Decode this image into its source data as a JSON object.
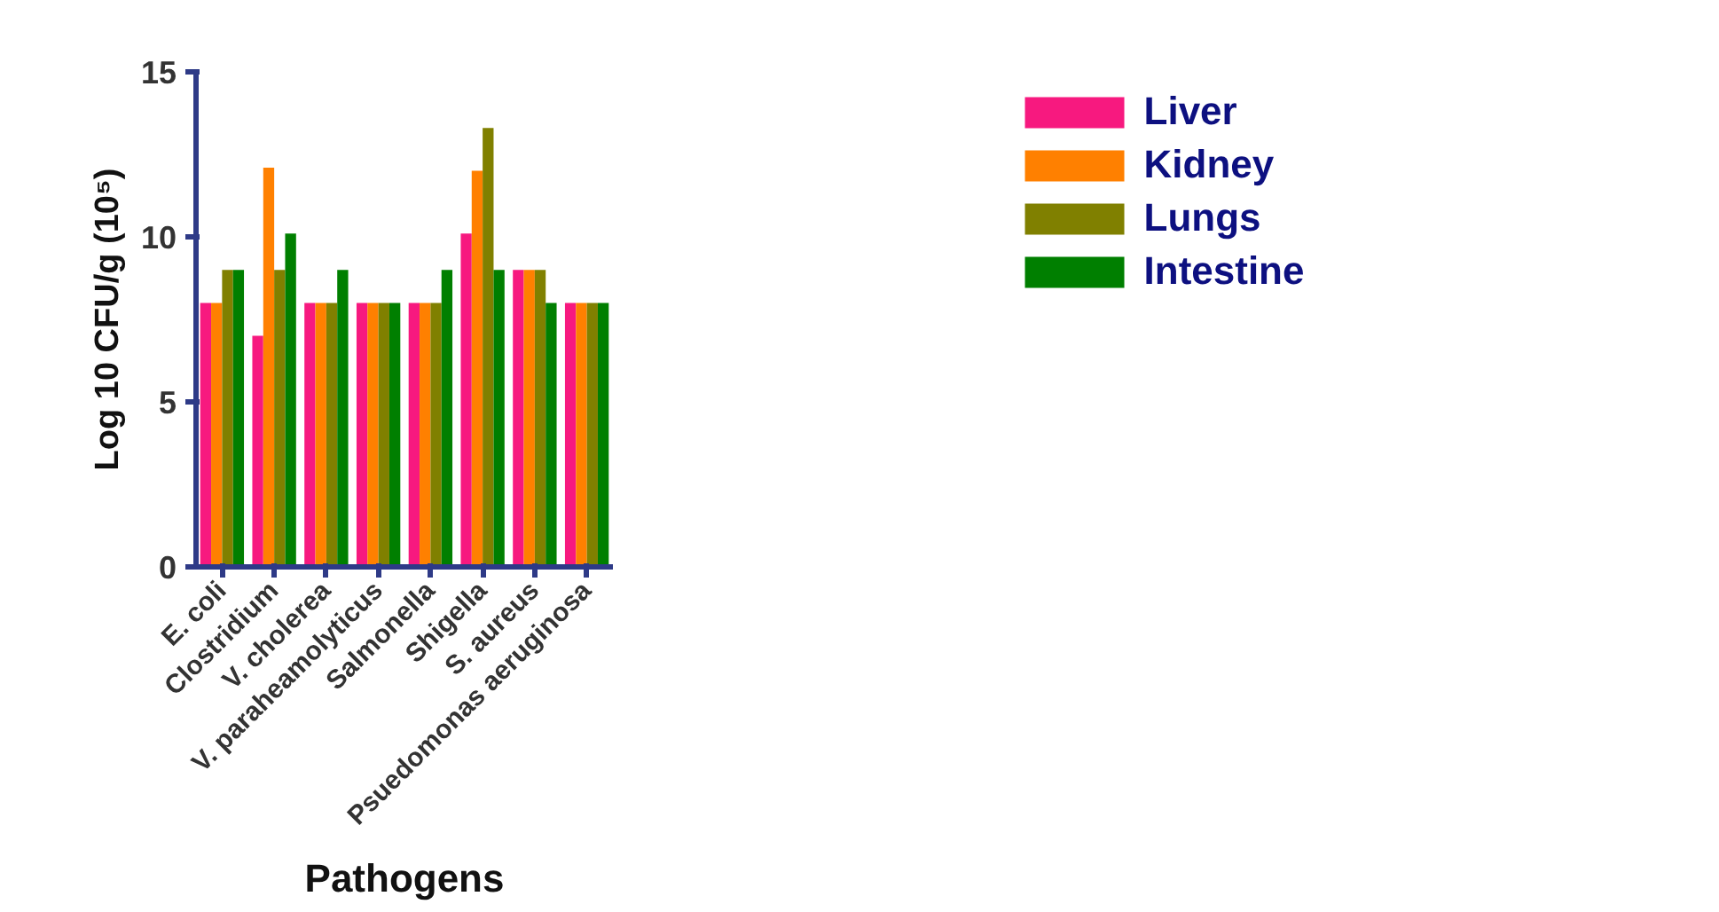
{
  "chart_data": {
    "type": "bar",
    "xlabel": "Pathogens",
    "ylabel": "Log 10 CFU/g (10⁵)",
    "categories": [
      "E. coli",
      "Clostridium",
      "V. cholerea",
      "V. paraheamolyticus",
      "Salmonella",
      "Shigella",
      "S. aureus",
      "Psuedomonas aeruginosa"
    ],
    "series": [
      {
        "name": "Liver",
        "color": "#f7197f",
        "values": [
          8,
          7,
          8,
          8,
          8,
          10.1,
          9,
          8
        ]
      },
      {
        "name": "Kidney",
        "color": "#ff8000",
        "values": [
          8,
          12.1,
          8,
          8,
          8,
          12.0,
          9,
          8
        ]
      },
      {
        "name": "Lungs",
        "color": "#808000",
        "values": [
          9,
          9,
          8,
          8,
          8,
          13.3,
          9,
          8
        ]
      },
      {
        "name": "Intestine",
        "color": "#007f00",
        "values": [
          9,
          10.1,
          9,
          8,
          9,
          9,
          8,
          8
        ]
      }
    ],
    "ylim": [
      0,
      15
    ],
    "yticks": [
      0,
      5,
      10,
      15
    ],
    "grid": false,
    "legend": "top right"
  }
}
